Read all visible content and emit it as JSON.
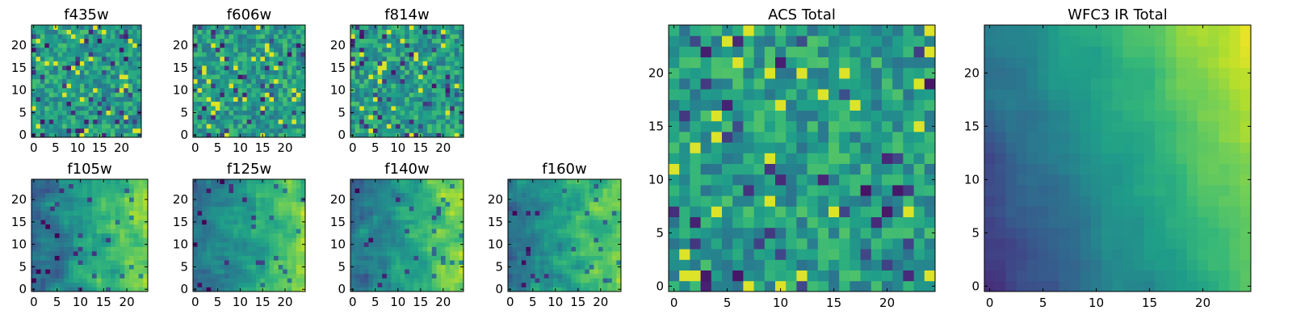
{
  "chart_data": [
    {
      "type": "heatmap",
      "title": "f435w",
      "grid_size": 25,
      "xlim": [
        0,
        25
      ],
      "ylim": [
        0,
        25
      ],
      "x_ticks": [
        "0",
        "5",
        "10",
        "15",
        "20"
      ],
      "y_ticks": [
        "0",
        "5",
        "10",
        "15",
        "20"
      ],
      "colormap": "viridis",
      "seed": 11,
      "style": "noise"
    },
    {
      "type": "heatmap",
      "title": "f606w",
      "grid_size": 25,
      "xlim": [
        0,
        25
      ],
      "ylim": [
        0,
        25
      ],
      "x_ticks": [
        "0",
        "5",
        "10",
        "15",
        "20"
      ],
      "y_ticks": [
        "0",
        "5",
        "10",
        "15",
        "20"
      ],
      "colormap": "viridis",
      "seed": 23,
      "style": "noise"
    },
    {
      "type": "heatmap",
      "title": "f814w",
      "grid_size": 25,
      "xlim": [
        0,
        25
      ],
      "ylim": [
        0,
        25
      ],
      "x_ticks": [
        "0",
        "5",
        "10",
        "15",
        "20"
      ],
      "y_ticks": [
        "0",
        "5",
        "10",
        "15",
        "20"
      ],
      "colormap": "viridis",
      "seed": 37,
      "style": "noise"
    },
    {
      "type": "heatmap",
      "title": "f105w",
      "grid_size": 25,
      "xlim": [
        0,
        25
      ],
      "ylim": [
        0,
        25
      ],
      "x_ticks": [
        "0",
        "5",
        "10",
        "15",
        "20"
      ],
      "y_ticks": [
        "0",
        "5",
        "10",
        "15",
        "20"
      ],
      "colormap": "viridis",
      "seed": 41,
      "style": "smooth"
    },
    {
      "type": "heatmap",
      "title": "f125w",
      "grid_size": 25,
      "xlim": [
        0,
        25
      ],
      "ylim": [
        0,
        25
      ],
      "x_ticks": [
        "0",
        "5",
        "10",
        "15",
        "20"
      ],
      "y_ticks": [
        "0",
        "5",
        "10",
        "15",
        "20"
      ],
      "colormap": "viridis",
      "seed": 53,
      "style": "smooth"
    },
    {
      "type": "heatmap",
      "title": "f140w",
      "grid_size": 25,
      "xlim": [
        0,
        25
      ],
      "ylim": [
        0,
        25
      ],
      "x_ticks": [
        "0",
        "5",
        "10",
        "15",
        "20"
      ],
      "y_ticks": [
        "0",
        "5",
        "10",
        "15",
        "20"
      ],
      "colormap": "viridis",
      "seed": 67,
      "style": "smooth"
    },
    {
      "type": "heatmap",
      "title": "f160w",
      "grid_size": 25,
      "xlim": [
        0,
        25
      ],
      "ylim": [
        0,
        25
      ],
      "x_ticks": [
        "0",
        "5",
        "10",
        "15",
        "20"
      ],
      "y_ticks": [
        "0",
        "5",
        "10",
        "15",
        "20"
      ],
      "colormap": "viridis",
      "seed": 79,
      "style": "smooth"
    },
    {
      "type": "heatmap",
      "title": "ACS Total",
      "grid_size": 25,
      "xlim": [
        0,
        25
      ],
      "ylim": [
        0,
        25
      ],
      "x_ticks": [
        "0",
        "5",
        "10",
        "15",
        "20"
      ],
      "y_ticks": [
        "0",
        "5",
        "10",
        "15",
        "20"
      ],
      "colormap": "viridis",
      "seed": 97,
      "style": "noise"
    },
    {
      "type": "heatmap",
      "title": "WFC3 IR Total",
      "grid_size": 25,
      "xlim": [
        0,
        25
      ],
      "ylim": [
        0,
        25
      ],
      "x_ticks": [
        "0",
        "5",
        "10",
        "15",
        "20"
      ],
      "y_ticks": [
        "0",
        "5",
        "10",
        "15",
        "20"
      ],
      "colormap": "viridis",
      "seed": 101,
      "style": "gradient"
    }
  ]
}
